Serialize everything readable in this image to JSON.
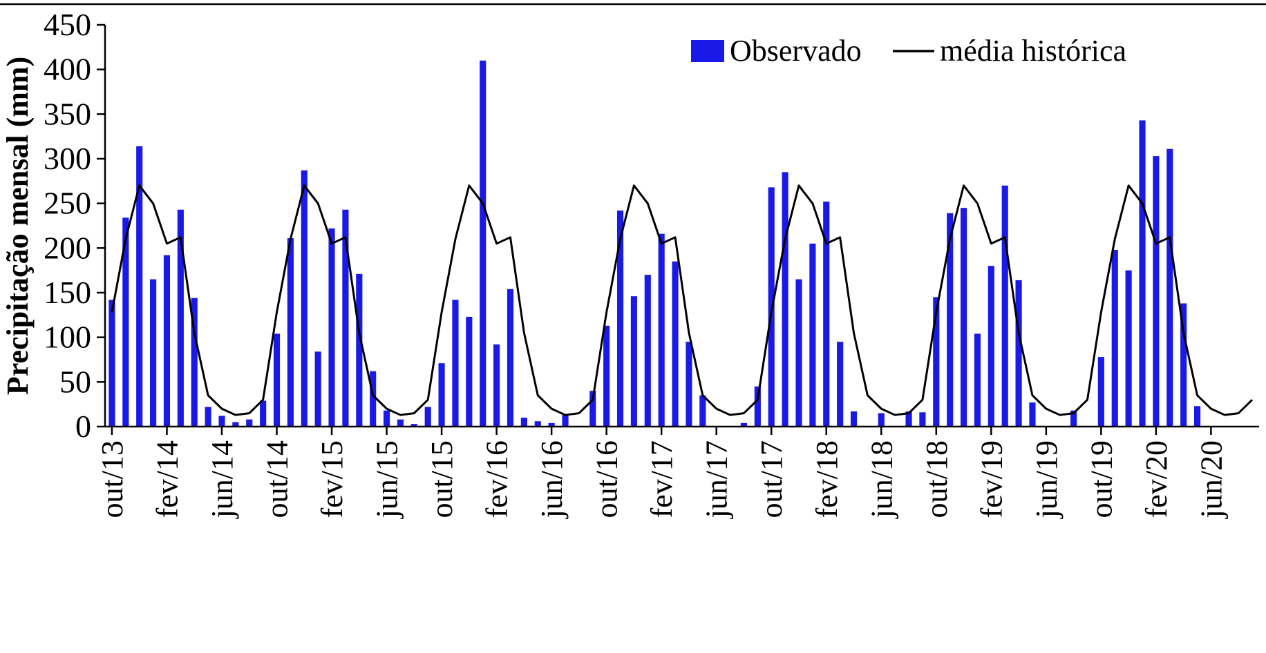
{
  "figure": {
    "background": "#ffffff",
    "border_color": "#000000"
  },
  "chart_data": {
    "type": "bar",
    "title": "",
    "xlabel": "",
    "ylabel": "Precipitação mensal (mm)",
    "ylim": [
      0,
      450
    ],
    "ytick_step": 50,
    "xtick_every": 4,
    "grid": false,
    "legend_position": "top-right",
    "categories": [
      "out/13",
      "nov/13",
      "dez/13",
      "jan/14",
      "fev/14",
      "mar/14",
      "abr/14",
      "mai/14",
      "jun/14",
      "jul/14",
      "ago/14",
      "set/14",
      "out/14",
      "nov/14",
      "dez/14",
      "jan/15",
      "fev/15",
      "mar/15",
      "abr/15",
      "mai/15",
      "jun/15",
      "jul/15",
      "ago/15",
      "set/15",
      "out/15",
      "nov/15",
      "dez/15",
      "jan/16",
      "fev/16",
      "mar/16",
      "abr/16",
      "mai/16",
      "jun/16",
      "jul/16",
      "ago/16",
      "set/16",
      "out/16",
      "nov/16",
      "dez/16",
      "jan/17",
      "fev/17",
      "mar/17",
      "abr/17",
      "mai/17",
      "jun/17",
      "jul/17",
      "ago/17",
      "set/17",
      "out/17",
      "nov/17",
      "dez/17",
      "jan/18",
      "fev/18",
      "mar/18",
      "abr/18",
      "mai/18",
      "jun/18",
      "jul/18",
      "ago/18",
      "set/18",
      "out/18",
      "nov/18",
      "dez/18",
      "jan/19",
      "fev/19",
      "mar/19",
      "abr/19",
      "mai/19",
      "jun/19",
      "jul/19",
      "ago/19",
      "set/19",
      "out/19",
      "nov/19",
      "dez/19",
      "jan/20",
      "fev/20",
      "mar/20",
      "abr/20",
      "mai/20",
      "jun/20",
      "jul/20",
      "ago/20",
      "set/20"
    ],
    "series": [
      {
        "name": "Observado",
        "type": "bar",
        "color": "#1a1ae8",
        "values": [
          142,
          234,
          314,
          165,
          192,
          243,
          144,
          22,
          12,
          5,
          8,
          29,
          104,
          211,
          287,
          84,
          222,
          243,
          171,
          62,
          18,
          8,
          3,
          22,
          71,
          142,
          123,
          410,
          92,
          154,
          10,
          6,
          4,
          13,
          0,
          40,
          113,
          242,
          146,
          170,
          216,
          185,
          95,
          35,
          0,
          0,
          4,
          45,
          268,
          285,
          165,
          205,
          252,
          95,
          17,
          0,
          15,
          0,
          17,
          16,
          145,
          239,
          245,
          104,
          180,
          270,
          164,
          27,
          0,
          0,
          18,
          0,
          78,
          198,
          175,
          343,
          303,
          311,
          138,
          23,
          0,
          0,
          0,
          0
        ]
      },
      {
        "name": "média histórica",
        "type": "line",
        "color": "#000000",
        "values": [
          128,
          210,
          270,
          250,
          205,
          212,
          105,
          35,
          20,
          13,
          15,
          30,
          128,
          210,
          270,
          250,
          205,
          212,
          105,
          35,
          20,
          13,
          15,
          30,
          128,
          210,
          270,
          250,
          205,
          212,
          105,
          35,
          20,
          13,
          15,
          30,
          128,
          210,
          270,
          250,
          205,
          212,
          105,
          35,
          20,
          13,
          15,
          30,
          128,
          210,
          270,
          250,
          205,
          212,
          105,
          35,
          20,
          13,
          15,
          30,
          128,
          210,
          270,
          250,
          205,
          212,
          105,
          35,
          20,
          13,
          15,
          30,
          128,
          210,
          270,
          250,
          205,
          212,
          105,
          35,
          20,
          13,
          15,
          30
        ]
      }
    ]
  }
}
